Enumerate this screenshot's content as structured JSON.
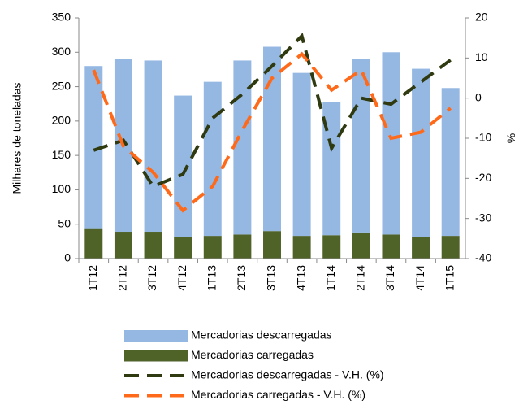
{
  "chart_data": {
    "type": "combo",
    "y_label": "Milhares de toneladas",
    "y2_label": "%",
    "categories": [
      "1T12",
      "2T12",
      "3T12",
      "4T12",
      "1T13",
      "2T13",
      "3T13",
      "4T13",
      "1T14",
      "2T14",
      "3T14",
      "4T14",
      "1T15"
    ],
    "ylim": [
      0,
      350
    ],
    "yticks": [
      0,
      50,
      100,
      150,
      200,
      250,
      300,
      350
    ],
    "y2lim": [
      -40,
      20
    ],
    "y2ticks": [
      -40,
      -30,
      -20,
      -10,
      0,
      10,
      20
    ],
    "series": [
      {
        "name": "Mercadorias descarregadas",
        "type": "bar",
        "color": "#95b8e3",
        "values": [
          237,
          251,
          249,
          206,
          224,
          253,
          268,
          237,
          194,
          252,
          265,
          245,
          215
        ]
      },
      {
        "name": "Mercadorias carregadas",
        "type": "bar",
        "color": "#4f6228",
        "values": [
          43,
          39,
          39,
          31,
          33,
          35,
          40,
          33,
          34,
          38,
          35,
          31,
          33
        ]
      },
      {
        "name": "Mercadorias descarregadas - V.H. (%)",
        "type": "line",
        "axis": "y2",
        "color": "#2f3a10",
        "values": [
          -13,
          -10.5,
          -22,
          -19,
          -5,
          1,
          8,
          15.5,
          -12.5,
          0,
          -1.5,
          4,
          9.5
        ]
      },
      {
        "name": "Mercadorias carregadas - V.H. (%)",
        "type": "line",
        "axis": "y2",
        "color": "#ff6a1a",
        "values": [
          7,
          -12,
          -18.5,
          -28,
          -22,
          -8,
          5,
          11,
          2,
          7,
          -10,
          -8.5,
          -2.5
        ]
      }
    ]
  }
}
